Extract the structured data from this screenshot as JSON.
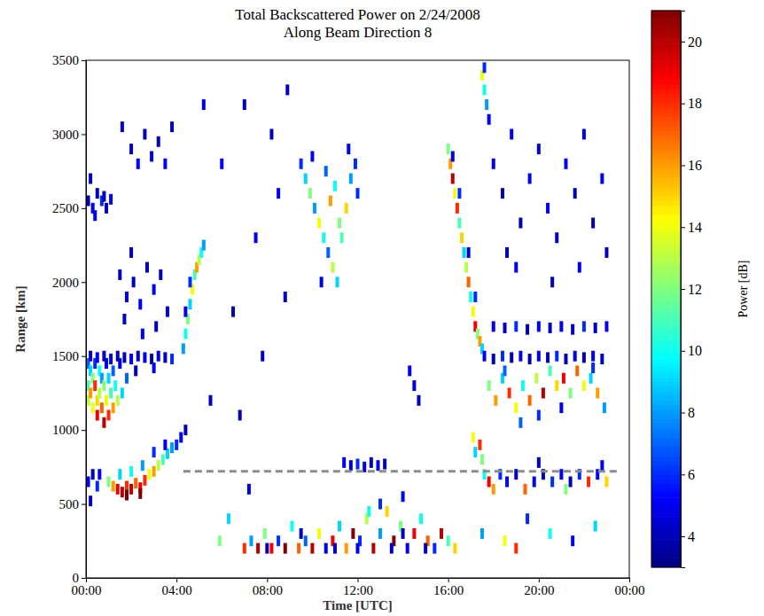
{
  "chart_data": {
    "type": "heatmap",
    "title": "Total Backscattered Power on 2/24/2008",
    "subtitle": "Along Beam Direction 8",
    "x_label": "Time [UTC]",
    "y_label": "Range [km]",
    "xlim": [
      0,
      24
    ],
    "xticks": [
      {
        "value": 0,
        "label": "00:00"
      },
      {
        "value": 4,
        "label": "04:00"
      },
      {
        "value": 8,
        "label": "08:00"
      },
      {
        "value": 12,
        "label": "12:00"
      },
      {
        "value": 16,
        "label": "16:00"
      },
      {
        "value": 20,
        "label": "20:00"
      },
      {
        "value": 24,
        "label": "00:00"
      }
    ],
    "ylim": [
      0,
      3500
    ],
    "yticks": [
      0,
      500,
      1000,
      1500,
      2000,
      2500,
      3000,
      3500
    ],
    "grid": false,
    "colorbar": {
      "label": "Power [dB]",
      "range": [
        3,
        21
      ],
      "ticks": [
        4,
        6,
        8,
        10,
        12,
        14,
        16,
        18,
        20
      ]
    },
    "series": [
      {
        "type": "line",
        "line_style": "dashed",
        "color": "#8c8c8c",
        "x": [
          4.3,
          23.6
        ],
        "values": [
          720,
          720
        ]
      }
    ],
    "cells": [
      [
        0.1,
        1450,
        7
      ],
      [
        0.1,
        1300,
        11
      ],
      [
        0.1,
        1200,
        13
      ],
      [
        0.2,
        1400,
        9
      ],
      [
        0.2,
        1250,
        16
      ],
      [
        0.3,
        1350,
        12
      ],
      [
        0.3,
        1150,
        14
      ],
      [
        0.4,
        1450,
        6
      ],
      [
        0.4,
        1300,
        18
      ],
      [
        0.5,
        1200,
        15
      ],
      [
        0.5,
        1100,
        19
      ],
      [
        0.6,
        1400,
        10
      ],
      [
        0.6,
        1250,
        13
      ],
      [
        0.7,
        1350,
        8
      ],
      [
        0.7,
        1150,
        17
      ],
      [
        0.8,
        1300,
        12
      ],
      [
        0.8,
        1050,
        20
      ],
      [
        0.9,
        1450,
        5
      ],
      [
        0.9,
        1200,
        14
      ],
      [
        1.0,
        1350,
        9
      ],
      [
        1.0,
        1100,
        18
      ],
      [
        1.1,
        1250,
        11
      ],
      [
        1.2,
        1400,
        7
      ],
      [
        1.2,
        1150,
        16
      ],
      [
        1.3,
        1300,
        10
      ],
      [
        1.4,
        1200,
        13
      ],
      [
        1.5,
        1450,
        5
      ],
      [
        1.6,
        1250,
        9
      ],
      [
        1.8,
        1350,
        7
      ],
      [
        0.2,
        1500,
        4
      ],
      [
        0.5,
        1490,
        5
      ],
      [
        0.8,
        1500,
        4
      ],
      [
        1.1,
        1480,
        5
      ],
      [
        1.4,
        1500,
        4
      ],
      [
        1.7,
        1490,
        4
      ],
      [
        2.0,
        1480,
        5
      ],
      [
        2.3,
        1500,
        4
      ],
      [
        2.6,
        1490,
        5
      ],
      [
        2.9,
        1480,
        4
      ],
      [
        3.2,
        1500,
        5
      ],
      [
        3.5,
        1490,
        4
      ],
      [
        3.8,
        1480,
        6
      ],
      [
        2.2,
        1400,
        4
      ],
      [
        3.0,
        1420,
        5
      ],
      [
        0.1,
        2550,
        4
      ],
      [
        0.3,
        2500,
        5
      ],
      [
        0.5,
        2600,
        4
      ],
      [
        0.7,
        2550,
        6
      ],
      [
        0.9,
        2500,
        4
      ],
      [
        0.4,
        2450,
        5
      ],
      [
        0.8,
        2580,
        4
      ],
      [
        1.1,
        2560,
        5
      ],
      [
        0.2,
        2700,
        4
      ],
      [
        1.0,
        650,
        12
      ],
      [
        1.2,
        620,
        16
      ],
      [
        1.4,
        600,
        19
      ],
      [
        1.6,
        580,
        20
      ],
      [
        1.8,
        620,
        18
      ],
      [
        2.0,
        600,
        20
      ],
      [
        2.2,
        640,
        17
      ],
      [
        2.4,
        610,
        19
      ],
      [
        2.6,
        660,
        18
      ],
      [
        2.8,
        700,
        14
      ],
      [
        3.0,
        720,
        16
      ],
      [
        3.2,
        760,
        13
      ],
      [
        3.4,
        800,
        11
      ],
      [
        3.6,
        840,
        9
      ],
      [
        3.8,
        880,
        8
      ],
      [
        4.0,
        900,
        6
      ],
      [
        4.2,
        950,
        5
      ],
      [
        4.4,
        1000,
        4
      ],
      [
        1.5,
        700,
        9
      ],
      [
        2.0,
        720,
        10
      ],
      [
        2.5,
        760,
        8
      ],
      [
        3.0,
        850,
        6
      ],
      [
        3.5,
        900,
        5
      ],
      [
        1.8,
        560,
        21
      ],
      [
        2.4,
        570,
        21
      ],
      [
        0.1,
        650,
        5
      ],
      [
        0.3,
        700,
        4
      ],
      [
        0.5,
        620,
        6
      ],
      [
        0.6,
        700,
        5
      ],
      [
        0.2,
        520,
        4
      ],
      [
        1.5,
        2050,
        4
      ],
      [
        1.8,
        1900,
        5
      ],
      [
        2.1,
        2000,
        4
      ],
      [
        2.4,
        1850,
        5
      ],
      [
        2.7,
        2100,
        4
      ],
      [
        3.0,
        1950,
        5
      ],
      [
        3.3,
        2050,
        4
      ],
      [
        3.6,
        1800,
        5
      ],
      [
        2.0,
        2200,
        4
      ],
      [
        3.1,
        1700,
        4
      ],
      [
        2.5,
        1650,
        5
      ],
      [
        1.7,
        1750,
        4
      ],
      [
        2.0,
        2900,
        4
      ],
      [
        2.3,
        2800,
        5
      ],
      [
        2.6,
        3000,
        4
      ],
      [
        2.9,
        2850,
        5
      ],
      [
        3.2,
        2950,
        4
      ],
      [
        3.5,
        2800,
        5
      ],
      [
        3.8,
        3050,
        4
      ],
      [
        1.6,
        3050,
        4
      ],
      [
        4.3,
        1550,
        8
      ],
      [
        4.4,
        1650,
        10
      ],
      [
        4.5,
        1750,
        12
      ],
      [
        4.6,
        1850,
        9
      ],
      [
        4.7,
        1950,
        14
      ],
      [
        4.8,
        2050,
        11
      ],
      [
        4.9,
        2100,
        16
      ],
      [
        5.0,
        2150,
        13
      ],
      [
        5.1,
        2200,
        10
      ],
      [
        5.2,
        2250,
        8
      ],
      [
        4.6,
        2000,
        6
      ],
      [
        4.4,
        1800,
        5
      ],
      [
        5.2,
        3200,
        5
      ],
      [
        5.5,
        1200,
        4
      ],
      [
        6.0,
        2800,
        5
      ],
      [
        6.5,
        1800,
        4
      ],
      [
        7.0,
        3200,
        4
      ],
      [
        7.5,
        2300,
        5
      ],
      [
        7.8,
        1500,
        4
      ],
      [
        8.2,
        3000,
        4
      ],
      [
        8.5,
        2600,
        5
      ],
      [
        8.8,
        1900,
        4
      ],
      [
        6.3,
        400,
        9
      ],
      [
        5.9,
        250,
        12
      ],
      [
        6.8,
        1100,
        4
      ],
      [
        7.2,
        600,
        5
      ],
      [
        8.9,
        3300,
        4
      ],
      [
        9.5,
        2800,
        6
      ],
      [
        9.7,
        2700,
        9
      ],
      [
        9.9,
        2600,
        12
      ],
      [
        10.1,
        2500,
        8
      ],
      [
        10.3,
        2400,
        14
      ],
      [
        10.5,
        2300,
        10
      ],
      [
        10.7,
        2200,
        7
      ],
      [
        10.9,
        2100,
        13
      ],
      [
        11.1,
        2000,
        9
      ],
      [
        11.3,
        2300,
        11
      ],
      [
        11.5,
        2500,
        15
      ],
      [
        11.7,
        2700,
        8
      ],
      [
        11.9,
        2800,
        6
      ],
      [
        10.0,
        2850,
        5
      ],
      [
        10.6,
        2750,
        7
      ],
      [
        11.0,
        2650,
        10
      ],
      [
        11.6,
        2900,
        5
      ],
      [
        12.0,
        2600,
        6
      ],
      [
        10.4,
        2000,
        5
      ],
      [
        11.2,
        2400,
        12
      ],
      [
        10.8,
        2550,
        16
      ],
      [
        7.0,
        200,
        18
      ],
      [
        7.3,
        250,
        8
      ],
      [
        7.6,
        200,
        20
      ],
      [
        7.9,
        300,
        12
      ],
      [
        8.2,
        200,
        19
      ],
      [
        8.5,
        250,
        6
      ],
      [
        8.8,
        200,
        21
      ],
      [
        9.1,
        350,
        10
      ],
      [
        9.4,
        200,
        17
      ],
      [
        9.7,
        250,
        7
      ],
      [
        10.0,
        200,
        20
      ],
      [
        10.3,
        300,
        14
      ],
      [
        10.6,
        200,
        5
      ],
      [
        10.9,
        250,
        19
      ],
      [
        11.2,
        350,
        9
      ],
      [
        11.5,
        200,
        16
      ],
      [
        11.8,
        300,
        21
      ],
      [
        12.1,
        250,
        6
      ],
      [
        12.4,
        400,
        13
      ],
      [
        12.7,
        200,
        20
      ],
      [
        13.0,
        300,
        8
      ],
      [
        13.3,
        450,
        15
      ],
      [
        13.6,
        250,
        21
      ],
      [
        13.9,
        350,
        12
      ],
      [
        14.2,
        200,
        5
      ],
      [
        14.5,
        300,
        19
      ],
      [
        14.8,
        400,
        10
      ],
      [
        15.1,
        250,
        17
      ],
      [
        15.4,
        200,
        6
      ],
      [
        15.7,
        300,
        20
      ],
      [
        16.0,
        250,
        11
      ],
      [
        16.3,
        200,
        15
      ],
      [
        8.0,
        200,
        4
      ],
      [
        9.5,
        300,
        4
      ],
      [
        11.0,
        200,
        4
      ],
      [
        12.0,
        200,
        5
      ],
      [
        13.5,
        200,
        4
      ],
      [
        14.0,
        300,
        4
      ],
      [
        15.0,
        200,
        4
      ],
      [
        13.0,
        500,
        6
      ],
      [
        12.5,
        450,
        10
      ],
      [
        14.0,
        550,
        5
      ],
      [
        11.4,
        780,
        5
      ],
      [
        11.7,
        760,
        4
      ],
      [
        12.0,
        770,
        6
      ],
      [
        12.3,
        750,
        5
      ],
      [
        12.6,
        780,
        4
      ],
      [
        12.9,
        760,
        5
      ],
      [
        13.2,
        770,
        4
      ],
      [
        14.5,
        1300,
        5
      ],
      [
        14.7,
        1200,
        4
      ],
      [
        14.3,
        1400,
        5
      ],
      [
        16.0,
        2900,
        12
      ],
      [
        16.1,
        2800,
        16
      ],
      [
        16.2,
        2700,
        20
      ],
      [
        16.3,
        2600,
        14
      ],
      [
        16.4,
        2500,
        18
      ],
      [
        16.5,
        2400,
        11
      ],
      [
        16.6,
        2300,
        15
      ],
      [
        16.7,
        2200,
        9
      ],
      [
        16.8,
        2100,
        13
      ],
      [
        16.9,
        2000,
        17
      ],
      [
        17.0,
        1900,
        10
      ],
      [
        17.1,
        1800,
        14
      ],
      [
        17.2,
        1700,
        19
      ],
      [
        17.3,
        1650,
        12
      ],
      [
        17.4,
        1600,
        16
      ],
      [
        17.5,
        1550,
        9
      ],
      [
        16.2,
        2850,
        5
      ],
      [
        16.5,
        2600,
        6
      ],
      [
        16.9,
        2200,
        5
      ],
      [
        17.2,
        1900,
        6
      ],
      [
        17.6,
        1500,
        5
      ],
      [
        18.0,
        1480,
        4
      ],
      [
        18.4,
        1500,
        6
      ],
      [
        18.8,
        1490,
        4
      ],
      [
        19.2,
        1500,
        5
      ],
      [
        19.6,
        1480,
        4
      ],
      [
        20.0,
        1500,
        5
      ],
      [
        20.4,
        1490,
        4
      ],
      [
        20.8,
        1500,
        6
      ],
      [
        21.2,
        1480,
        4
      ],
      [
        21.6,
        1500,
        5
      ],
      [
        22.0,
        1490,
        4
      ],
      [
        22.4,
        1500,
        5
      ],
      [
        22.8,
        1480,
        4
      ],
      [
        18.0,
        1700,
        5
      ],
      [
        18.5,
        1690,
        4
      ],
      [
        19.0,
        1700,
        6
      ],
      [
        19.5,
        1680,
        4
      ],
      [
        20.0,
        1700,
        5
      ],
      [
        20.5,
        1690,
        4
      ],
      [
        21.0,
        1700,
        5
      ],
      [
        21.5,
        1680,
        4
      ],
      [
        22.0,
        1700,
        6
      ],
      [
        22.5,
        1690,
        4
      ],
      [
        23.0,
        1700,
        5
      ],
      [
        17.8,
        1300,
        12
      ],
      [
        18.1,
        1200,
        16
      ],
      [
        18.4,
        1350,
        9
      ],
      [
        18.7,
        1250,
        18
      ],
      [
        19.0,
        1150,
        14
      ],
      [
        19.3,
        1300,
        10
      ],
      [
        19.6,
        1200,
        17
      ],
      [
        19.9,
        1350,
        13
      ],
      [
        20.2,
        1250,
        20
      ],
      [
        20.5,
        1400,
        11
      ],
      [
        20.8,
        1300,
        15
      ],
      [
        21.1,
        1350,
        19
      ],
      [
        21.4,
        1250,
        12
      ],
      [
        21.7,
        1400,
        17
      ],
      [
        22.0,
        1300,
        14
      ],
      [
        22.3,
        1350,
        9
      ],
      [
        22.6,
        1250,
        16
      ],
      [
        22.9,
        1150,
        8
      ],
      [
        19.2,
        1050,
        7
      ],
      [
        20.0,
        1100,
        6
      ],
      [
        21.0,
        1150,
        5
      ],
      [
        18.5,
        1400,
        7
      ],
      [
        22.4,
        1420,
        6
      ],
      [
        17.1,
        950,
        14
      ],
      [
        17.2,
        850,
        9
      ],
      [
        17.4,
        900,
        18
      ],
      [
        17.5,
        800,
        12
      ],
      [
        17.6,
        700,
        10
      ],
      [
        17.8,
        650,
        19
      ],
      [
        18.0,
        600,
        16
      ],
      [
        18.3,
        700,
        6
      ],
      [
        18.6,
        650,
        5
      ],
      [
        19.0,
        700,
        4
      ],
      [
        19.4,
        600,
        17
      ],
      [
        19.8,
        650,
        5
      ],
      [
        20.2,
        700,
        4
      ],
      [
        20.6,
        650,
        6
      ],
      [
        21.0,
        700,
        5
      ],
      [
        21.4,
        650,
        4
      ],
      [
        21.8,
        700,
        6
      ],
      [
        22.2,
        650,
        18
      ],
      [
        22.6,
        700,
        5
      ],
      [
        23.0,
        650,
        15
      ],
      [
        20.0,
        780,
        4
      ],
      [
        21.2,
        600,
        12
      ],
      [
        22.8,
        760,
        5
      ],
      [
        18.0,
        2800,
        5
      ],
      [
        18.4,
        2600,
        4
      ],
      [
        18.8,
        3000,
        5
      ],
      [
        19.2,
        2400,
        4
      ],
      [
        19.6,
        2700,
        5
      ],
      [
        20.0,
        2900,
        4
      ],
      [
        20.4,
        2500,
        5
      ],
      [
        20.8,
        2300,
        4
      ],
      [
        21.2,
        2800,
        5
      ],
      [
        21.6,
        2600,
        4
      ],
      [
        22.0,
        3000,
        5
      ],
      [
        22.4,
        2400,
        4
      ],
      [
        22.8,
        2700,
        5
      ],
      [
        23.0,
        2200,
        4
      ],
      [
        19.0,
        2100,
        5
      ],
      [
        20.6,
        2000,
        4
      ],
      [
        21.8,
        2100,
        5
      ],
      [
        18.6,
        2200,
        4
      ],
      [
        17.5,
        3400,
        14
      ],
      [
        17.6,
        3300,
        10
      ],
      [
        17.7,
        3200,
        8
      ],
      [
        17.6,
        3450,
        6
      ],
      [
        17.8,
        3100,
        5
      ],
      [
        17.5,
        300,
        8
      ],
      [
        18.5,
        250,
        14
      ],
      [
        19.5,
        400,
        6
      ],
      [
        20.5,
        300,
        10
      ],
      [
        21.5,
        250,
        5
      ],
      [
        22.5,
        350,
        9
      ],
      [
        19.0,
        200,
        18
      ]
    ]
  }
}
